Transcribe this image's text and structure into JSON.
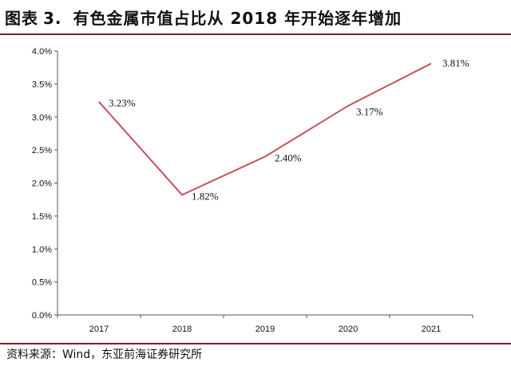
{
  "header": {
    "figure_label": "图表",
    "figure_number": "3.",
    "title": "有色金属市值占比从 2018 年开始逐年增加"
  },
  "footer": {
    "source": "资料来源：Wind，东亚前海证券研究所"
  },
  "colors": {
    "line": "#c8505a",
    "rule": "#7a1f2b",
    "axis": "#555555"
  },
  "chart_data": {
    "type": "line",
    "x": [
      "2017",
      "2018",
      "2019",
      "2020",
      "2021"
    ],
    "series": [
      {
        "values": [
          3.23,
          1.82,
          2.4,
          3.17,
          3.81
        ]
      }
    ],
    "data_labels": [
      "3.23%",
      "1.82%",
      "2.40%",
      "3.17%",
      "3.81%"
    ],
    "ylim": [
      0,
      4.0
    ],
    "yticks": [
      0,
      0.5,
      1.0,
      1.5,
      2.0,
      2.5,
      3.0,
      3.5,
      4.0
    ],
    "ytick_labels": [
      "0.0%",
      "0.5%",
      "1.0%",
      "1.5%",
      "2.0%",
      "2.5%",
      "3.0%",
      "3.5%",
      "4.0%"
    ],
    "grid": false,
    "legend": false
  }
}
